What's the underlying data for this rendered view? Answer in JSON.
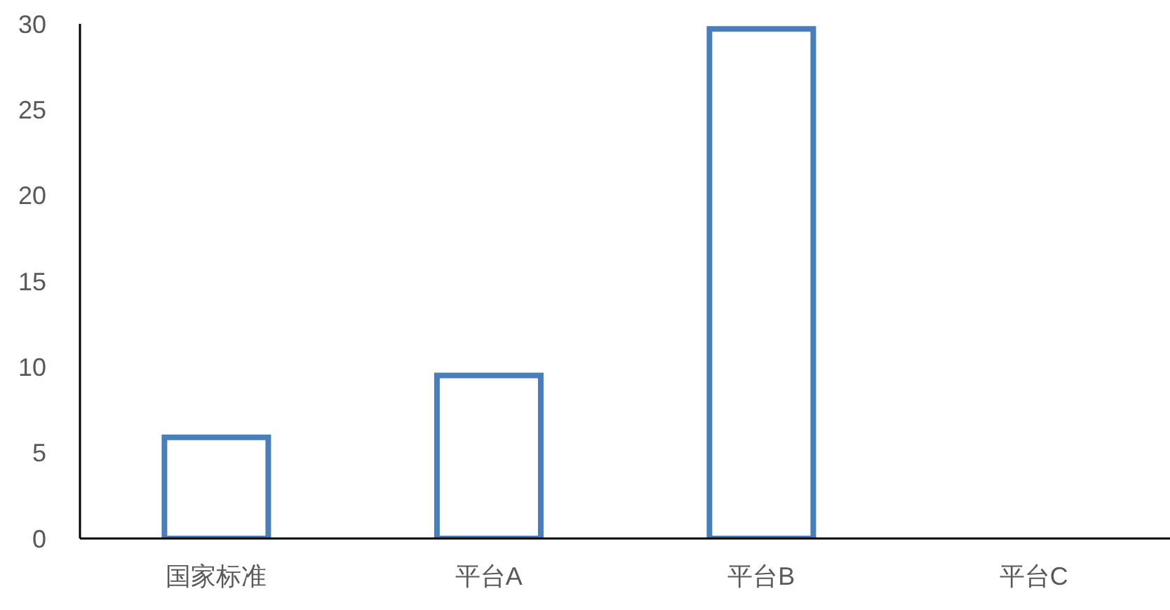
{
  "chart_data": {
    "type": "bar",
    "categories": [
      "国家标准",
      "平台A",
      "平台B",
      "平台C"
    ],
    "values": [
      5.9,
      9.5,
      29.7,
      0
    ],
    "color": "#4a7ebb",
    "ylim": [
      0,
      30
    ],
    "yticks": [
      0,
      5,
      10,
      15,
      20,
      25,
      30
    ],
    "grid": false
  }
}
